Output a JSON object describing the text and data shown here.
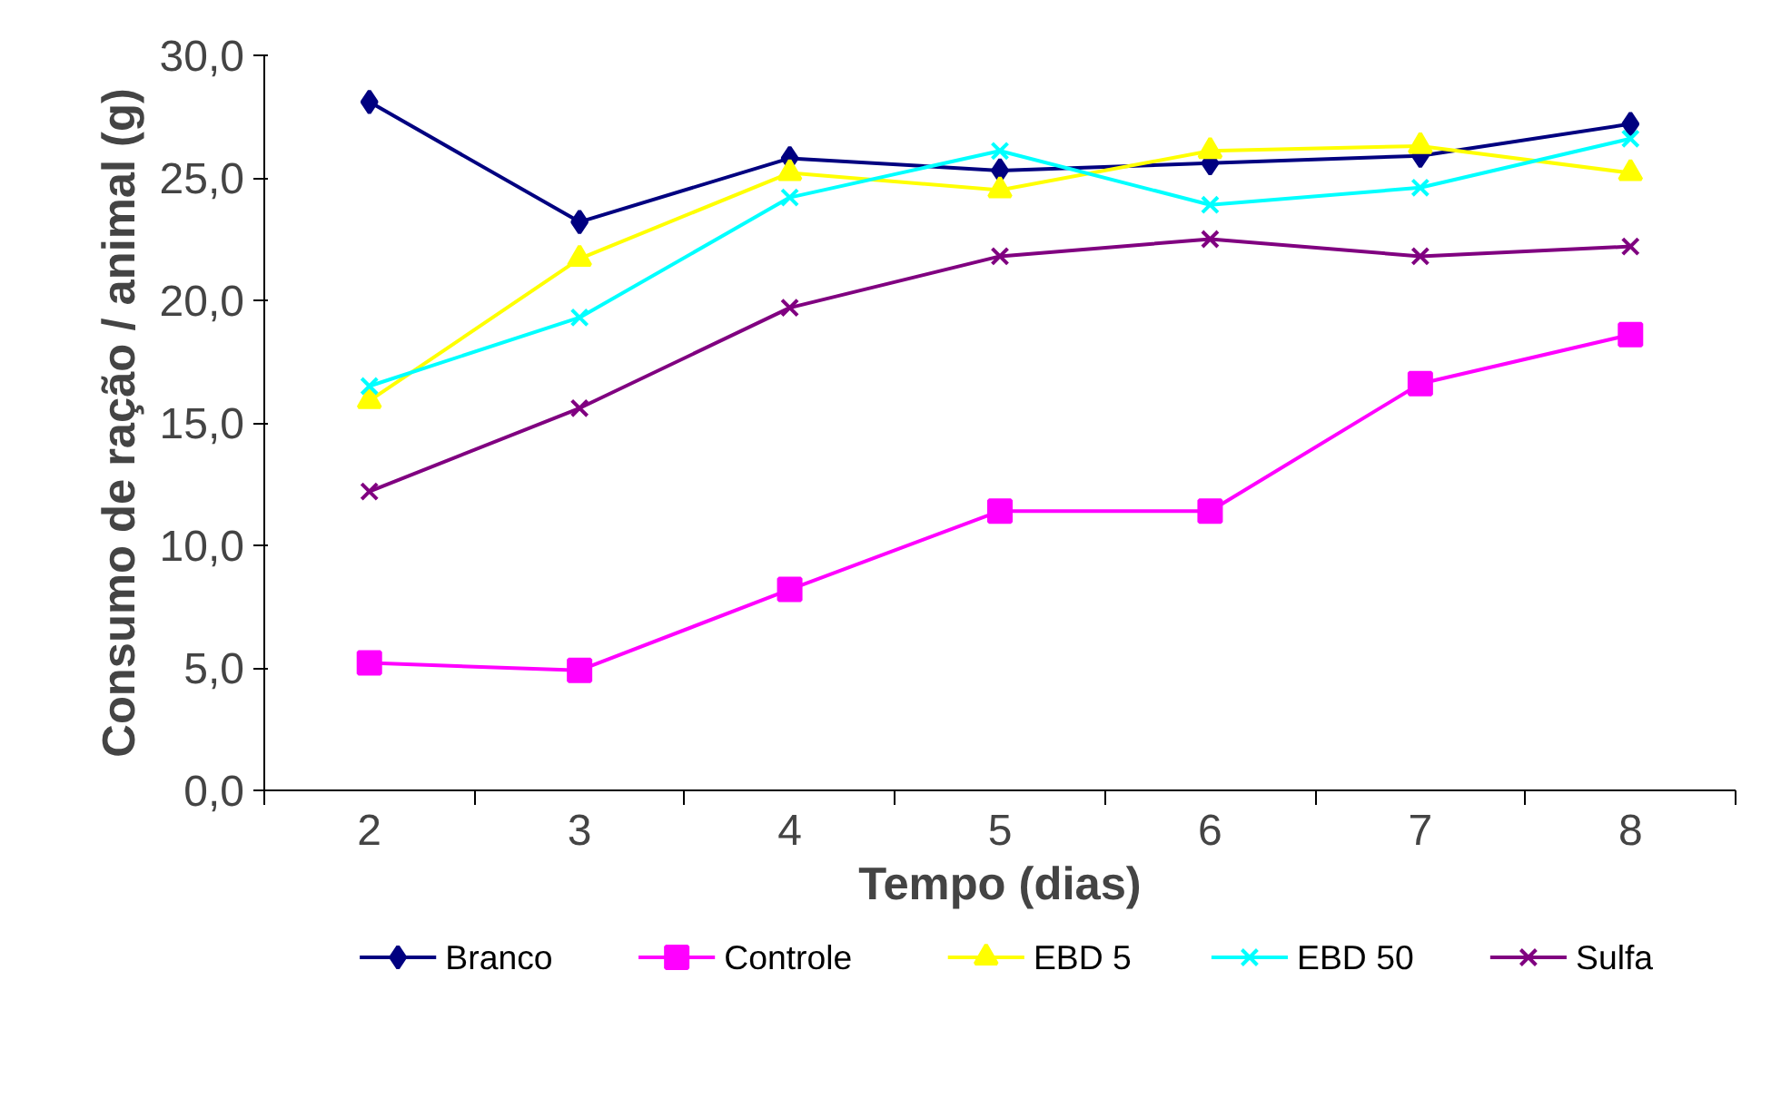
{
  "chart_data": {
    "type": "line",
    "xlabel": "Tempo (dias)",
    "ylabel": "Consumo de ração / animal (g)",
    "categories": [
      "2",
      "3",
      "4",
      "5",
      "6",
      "7",
      "8"
    ],
    "ylim": [
      0,
      30
    ],
    "yticks": [
      {
        "value": 0,
        "label": "0,0"
      },
      {
        "value": 5,
        "label": "5,0"
      },
      {
        "value": 10,
        "label": "10,0"
      },
      {
        "value": 15,
        "label": "15,0"
      },
      {
        "value": 20,
        "label": "20,0"
      },
      {
        "value": 25,
        "label": "25,0"
      },
      {
        "value": 30,
        "label": "30,0"
      }
    ],
    "grid": false,
    "legend": "bottom",
    "line_style": "solid",
    "series": [
      {
        "name": "Branco",
        "color": "#000080",
        "marker": "diamond",
        "values": [
          28.1,
          23.2,
          25.8,
          25.3,
          25.6,
          25.9,
          27.2
        ]
      },
      {
        "name": "Controle",
        "color": "#ff00ff",
        "marker": "square",
        "values": [
          5.2,
          4.9,
          8.2,
          11.4,
          11.4,
          16.6,
          18.6
        ]
      },
      {
        "name": "EBD 5",
        "color": "#ffff00",
        "marker": "triangle",
        "values": [
          15.9,
          21.7,
          25.2,
          24.5,
          26.1,
          26.3,
          25.2
        ]
      },
      {
        "name": "EBD 50",
        "color": "#00ffff",
        "marker": "cross",
        "values": [
          16.5,
          19.3,
          24.2,
          26.1,
          23.9,
          24.6,
          26.6
        ]
      },
      {
        "name": "Sulfa",
        "color": "#800080",
        "marker": "cross",
        "values": [
          12.2,
          15.6,
          19.7,
          21.8,
          22.5,
          21.8,
          22.2
        ]
      }
    ]
  }
}
